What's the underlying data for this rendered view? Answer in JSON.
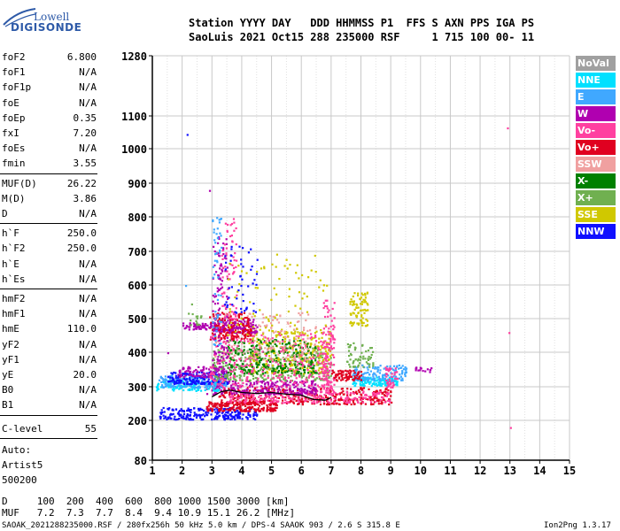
{
  "logo": {
    "line1": "Lowell",
    "line2": "DIGISONDE"
  },
  "header": {
    "line1": "Station YYYY DAY   DDD HHMMSS P1  FFS S AXN PPS IGA PS",
    "line2": "SaoLuis 2021 Oct15 288 235000 RSF     1 715 100 00- 11"
  },
  "params_group1": [
    {
      "k": "foF2",
      "v": "6.800"
    },
    {
      "k": "foF1",
      "v": "N/A"
    },
    {
      "k": "foF1p",
      "v": "N/A"
    },
    {
      "k": "foE",
      "v": "N/A"
    },
    {
      "k": "foEp",
      "v": "0.35"
    },
    {
      "k": "fxI",
      "v": "7.20"
    },
    {
      "k": "foEs",
      "v": "N/A"
    },
    {
      "k": "fmin",
      "v": "3.55"
    }
  ],
  "params_group2": [
    {
      "k": "MUF(D)",
      "v": "26.22"
    },
    {
      "k": "M(D)",
      "v": "3.86"
    },
    {
      "k": "D",
      "v": "N/A"
    }
  ],
  "params_group3": [
    {
      "k": "h`F",
      "v": "250.0"
    },
    {
      "k": "h`F2",
      "v": "250.0"
    },
    {
      "k": "h`E",
      "v": "N/A"
    },
    {
      "k": "h`Es",
      "v": "N/A"
    }
  ],
  "params_group4": [
    {
      "k": "hmF2",
      "v": "N/A"
    },
    {
      "k": "hmF1",
      "v": "N/A"
    },
    {
      "k": "hmE",
      "v": "110.0"
    },
    {
      "k": "yF2",
      "v": "N/A"
    },
    {
      "k": "yF1",
      "v": "N/A"
    },
    {
      "k": "yE",
      "v": "20.0"
    },
    {
      "k": "B0",
      "v": "N/A"
    },
    {
      "k": "B1",
      "v": "N/A"
    }
  ],
  "c_level": {
    "k": "C-level",
    "v": "55"
  },
  "auto": {
    "line1": "Auto:",
    "line2": "Artist5",
    "line3": "500200"
  },
  "legend": [
    {
      "label": "NoVal",
      "color": "#a0a0a0"
    },
    {
      "label": "NNE",
      "color": "#00e0ff"
    },
    {
      "label": "E",
      "color": "#40a8ff"
    },
    {
      "label": "W",
      "color": "#b000b0"
    },
    {
      "label": "Vo-",
      "color": "#ff40a0"
    },
    {
      "label": "Vo+",
      "color": "#e00020"
    },
    {
      "label": "SSW",
      "color": "#f0a0a0"
    },
    {
      "label": "X-",
      "color": "#008000"
    },
    {
      "label": "X+",
      "color": "#70b050"
    },
    {
      "label": "SSE",
      "color": "#d0c800"
    },
    {
      "label": "NNW",
      "color": "#1010ff"
    }
  ],
  "footer": {
    "line1": "D     100  200  400  600  800 1000 1500 3000 [km]",
    "line2": "MUF   7.2  7.3  7.7  8.4  9.4 10.9 15.1 26.2 [MHz]",
    "line3": "SAOAK_2021288235000.RSF / 280fx256h 50 kHz 5.0 km / DPS-4 SAAOK 903 / 2.6 S 315.8 E",
    "version": "Ion2Png 1.3.17"
  },
  "chart_data": {
    "type": "scatter",
    "title": "",
    "xlabel": "",
    "ylabel": "",
    "xlim": [
      1,
      15
    ],
    "ylim": [
      80,
      1280
    ],
    "x_ticks": [
      1,
      2,
      3,
      4,
      5,
      6,
      7,
      8,
      9,
      10,
      11,
      12,
      13,
      14,
      15
    ],
    "y_ticks": [
      80,
      200,
      300,
      400,
      500,
      600,
      700,
      800,
      900,
      1000,
      1100,
      1280
    ],
    "grid": true,
    "clusters": [
      {
        "color": "#1010ff",
        "x": [
          1.2,
          4.5
        ],
        "y": [
          205,
          240
        ],
        "n": 240
      },
      {
        "color": "#e00020",
        "x": [
          2.8,
          5.2
        ],
        "y": [
          230,
          260
        ],
        "n": 200
      },
      {
        "color": "#e00020",
        "x": [
          3.2,
          9.0
        ],
        "y": [
          250,
          300
        ],
        "n": 380
      },
      {
        "color": "#ff40a0",
        "x": [
          3.5,
          9.0
        ],
        "y": [
          255,
          290
        ],
        "n": 220
      },
      {
        "color": "#b000b0",
        "x": [
          2.8,
          6.5
        ],
        "y": [
          280,
          320
        ],
        "n": 260
      },
      {
        "color": "#00e0ff",
        "x": [
          1.1,
          3.2
        ],
        "y": [
          290,
          320
        ],
        "n": 120
      },
      {
        "color": "#40a8ff",
        "x": [
          1.2,
          3.5
        ],
        "y": [
          300,
          335
        ],
        "n": 160
      },
      {
        "color": "#1010ff",
        "x": [
          1.5,
          3.5
        ],
        "y": [
          310,
          345
        ],
        "n": 160
      },
      {
        "color": "#b000b0",
        "x": [
          1.8,
          3.5
        ],
        "y": [
          330,
          360
        ],
        "n": 100
      },
      {
        "color": "#70b050",
        "x": [
          3.0,
          7.0
        ],
        "y": [
          320,
          420
        ],
        "n": 360
      },
      {
        "color": "#d0c800",
        "x": [
          4.2,
          7.0
        ],
        "y": [
          340,
          470
        ],
        "n": 300
      },
      {
        "color": "#008000",
        "x": [
          3.5,
          6.5
        ],
        "y": [
          340,
          440
        ],
        "n": 260
      },
      {
        "color": "#ff40a0",
        "x": [
          2.9,
          7.0
        ],
        "y": [
          300,
          460
        ],
        "n": 300
      },
      {
        "color": "#f0a0a0",
        "x": [
          3.0,
          6.5
        ],
        "y": [
          380,
          520
        ],
        "n": 180
      },
      {
        "color": "#ff40a0",
        "x": [
          6.7,
          7.1
        ],
        "y": [
          280,
          560
        ],
        "n": 120
      },
      {
        "color": "#b000b0",
        "x": [
          3.0,
          4.5
        ],
        "y": [
          460,
          500
        ],
        "n": 160
      },
      {
        "color": "#e00020",
        "x": [
          2.9,
          4.3
        ],
        "y": [
          440,
          520
        ],
        "n": 140
      },
      {
        "color": "#b000b0",
        "x": [
          2.0,
          3.0
        ],
        "y": [
          470,
          490
        ],
        "n": 60
      },
      {
        "color": "#00e0ff",
        "x": [
          7.7,
          9.2
        ],
        "y": [
          305,
          330
        ],
        "n": 130
      },
      {
        "color": "#40a8ff",
        "x": [
          7.7,
          9.5
        ],
        "y": [
          320,
          365
        ],
        "n": 130
      },
      {
        "color": "#e00020",
        "x": [
          7.0,
          8.0
        ],
        "y": [
          320,
          350
        ],
        "n": 80
      },
      {
        "color": "#d0c800",
        "x": [
          7.6,
          8.2
        ],
        "y": [
          480,
          580
        ],
        "n": 80
      },
      {
        "color": "#70b050",
        "x": [
          7.5,
          8.4
        ],
        "y": [
          360,
          430
        ],
        "n": 60
      },
      {
        "color": "#ff40a0",
        "x": [
          8.8,
          9.2
        ],
        "y": [
          300,
          360
        ],
        "n": 40
      },
      {
        "color": "#b000b0",
        "x": [
          9.8,
          10.4
        ],
        "y": [
          345,
          360
        ],
        "n": 15
      },
      {
        "color": "#b000b0",
        "x": [
          3.0,
          3.5
        ],
        "y": [
          350,
          750
        ],
        "n": 120
      },
      {
        "color": "#40a8ff",
        "x": [
          3.0,
          3.3
        ],
        "y": [
          420,
          800
        ],
        "n": 50
      },
      {
        "color": "#ff40a0",
        "x": [
          3.3,
          3.8
        ],
        "y": [
          500,
          800
        ],
        "n": 70
      },
      {
        "color": "#d0c800",
        "x": [
          3.5,
          6.9
        ],
        "y": [
          450,
          700
        ],
        "n": 80
      },
      {
        "color": "#1010ff",
        "x": [
          3.4,
          4.5
        ],
        "y": [
          520,
          720
        ],
        "n": 50
      },
      {
        "color": "#70b050",
        "x": [
          2.1,
          2.7
        ],
        "y": [
          480,
          520
        ],
        "n": 15
      }
    ],
    "trace": {
      "color": "#000000",
      "x": [
        3.0,
        3.3,
        3.6,
        4.0,
        4.5,
        5.0,
        5.5,
        6.0,
        6.4,
        6.8,
        7.0
      ],
      "y": [
        270,
        285,
        290,
        283,
        280,
        283,
        278,
        275,
        262,
        260,
        268
      ]
    }
  }
}
